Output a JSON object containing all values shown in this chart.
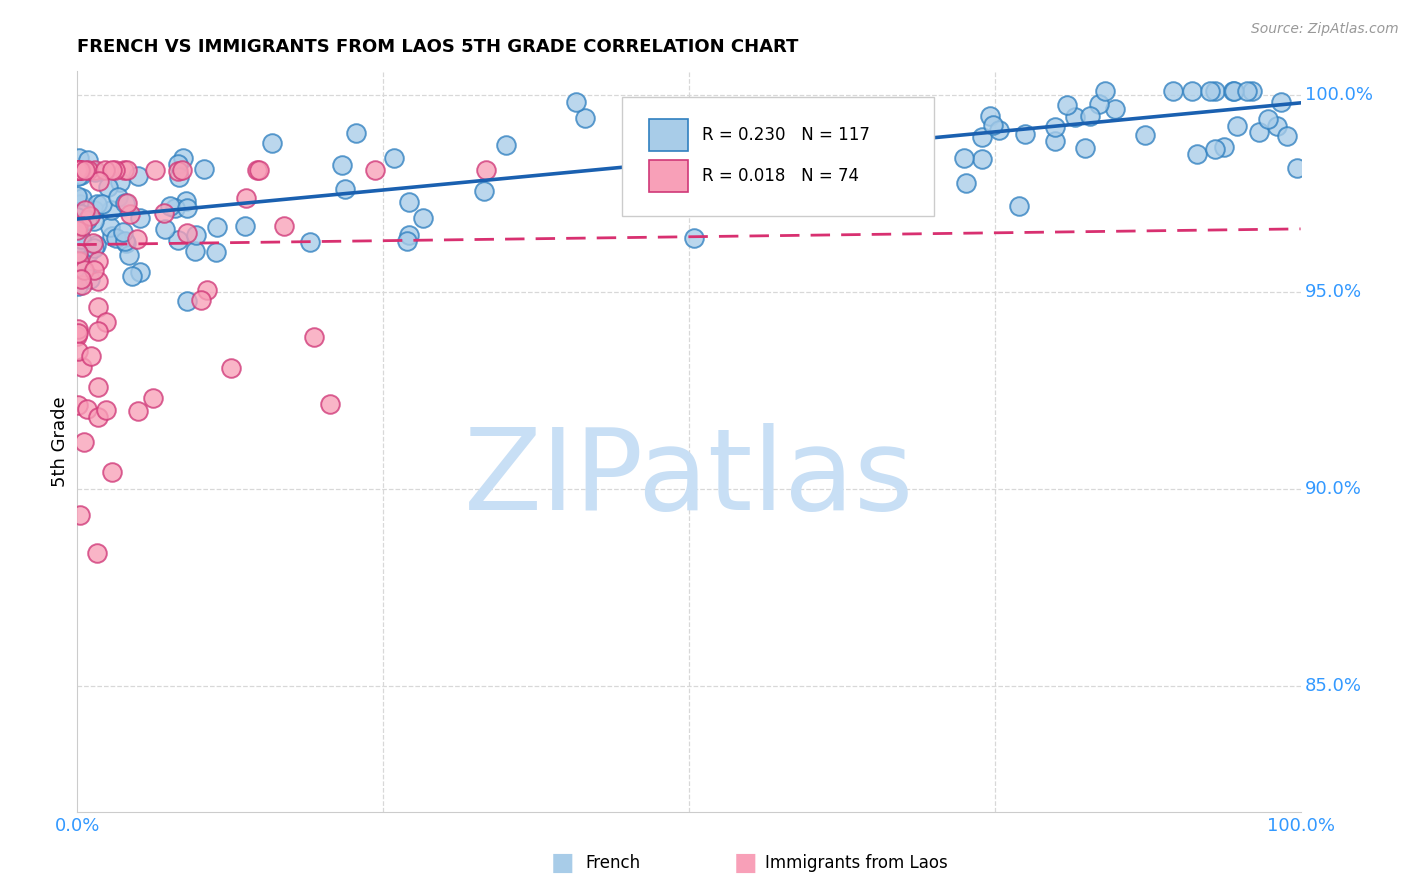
{
  "title": "FRENCH VS IMMIGRANTS FROM LAOS 5TH GRADE CORRELATION CHART",
  "source": "Source: ZipAtlas.com",
  "ylabel": "5th Grade",
  "french_fill": "#a8cce8",
  "french_edge": "#3080c0",
  "laos_fill": "#f8a0b8",
  "laos_edge": "#d03878",
  "french_line_color": "#1a60b0",
  "laos_line_color": "#d83070",
  "legend_french_R": "R = 0.230",
  "legend_french_N": "N = 117",
  "legend_laos_R": "R = 0.018",
  "legend_laos_N": "N = 74",
  "watermark": "ZIPatlas",
  "watermark_color": "#c8dff5",
  "tick_color": "#3399ff",
  "grid_color": "#d8d8d8",
  "bg_color": "#ffffff",
  "yticks": [
    0.85,
    0.9,
    0.95,
    1.0
  ],
  "ytick_labels": [
    "85.0%",
    "90.0%",
    "95.0%",
    "100.0%"
  ],
  "xlim": [
    0.0,
    1.0
  ],
  "ylim": [
    0.818,
    1.006
  ],
  "french_trend_y0": 0.9685,
  "french_trend_y1": 0.998,
  "laos_trend_y0": 0.962,
  "laos_trend_y1": 0.966,
  "marker_size": 180
}
